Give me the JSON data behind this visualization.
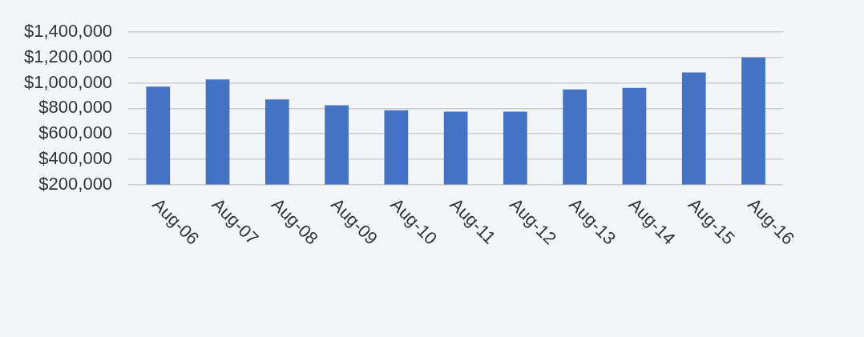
{
  "chart_data": {
    "type": "bar",
    "categories": [
      "Aug-06",
      "Aug-07",
      "Aug-08",
      "Aug-09",
      "Aug-10",
      "Aug-11",
      "Aug-12",
      "Aug-13",
      "Aug-14",
      "Aug-15",
      "Aug-16"
    ],
    "values": [
      970000,
      1026000,
      869000,
      824000,
      785000,
      774000,
      774000,
      948000,
      961000,
      1082000,
      1200000
    ],
    "color": "#4472c4",
    "ylim": [
      200000,
      1400000
    ],
    "yticks": [
      {
        "value": 200000,
        "label": "$200,000"
      },
      {
        "value": 400000,
        "label": "$400,000"
      },
      {
        "value": 600000,
        "label": "$600,000"
      },
      {
        "value": 800000,
        "label": "$800,000"
      },
      {
        "value": 1000000,
        "label": "$1,000,000"
      },
      {
        "value": 1200000,
        "label": "$1,200,000"
      },
      {
        "value": 1400000,
        "label": "$1,400,000"
      }
    ],
    "grid": "y",
    "legend": false
  }
}
